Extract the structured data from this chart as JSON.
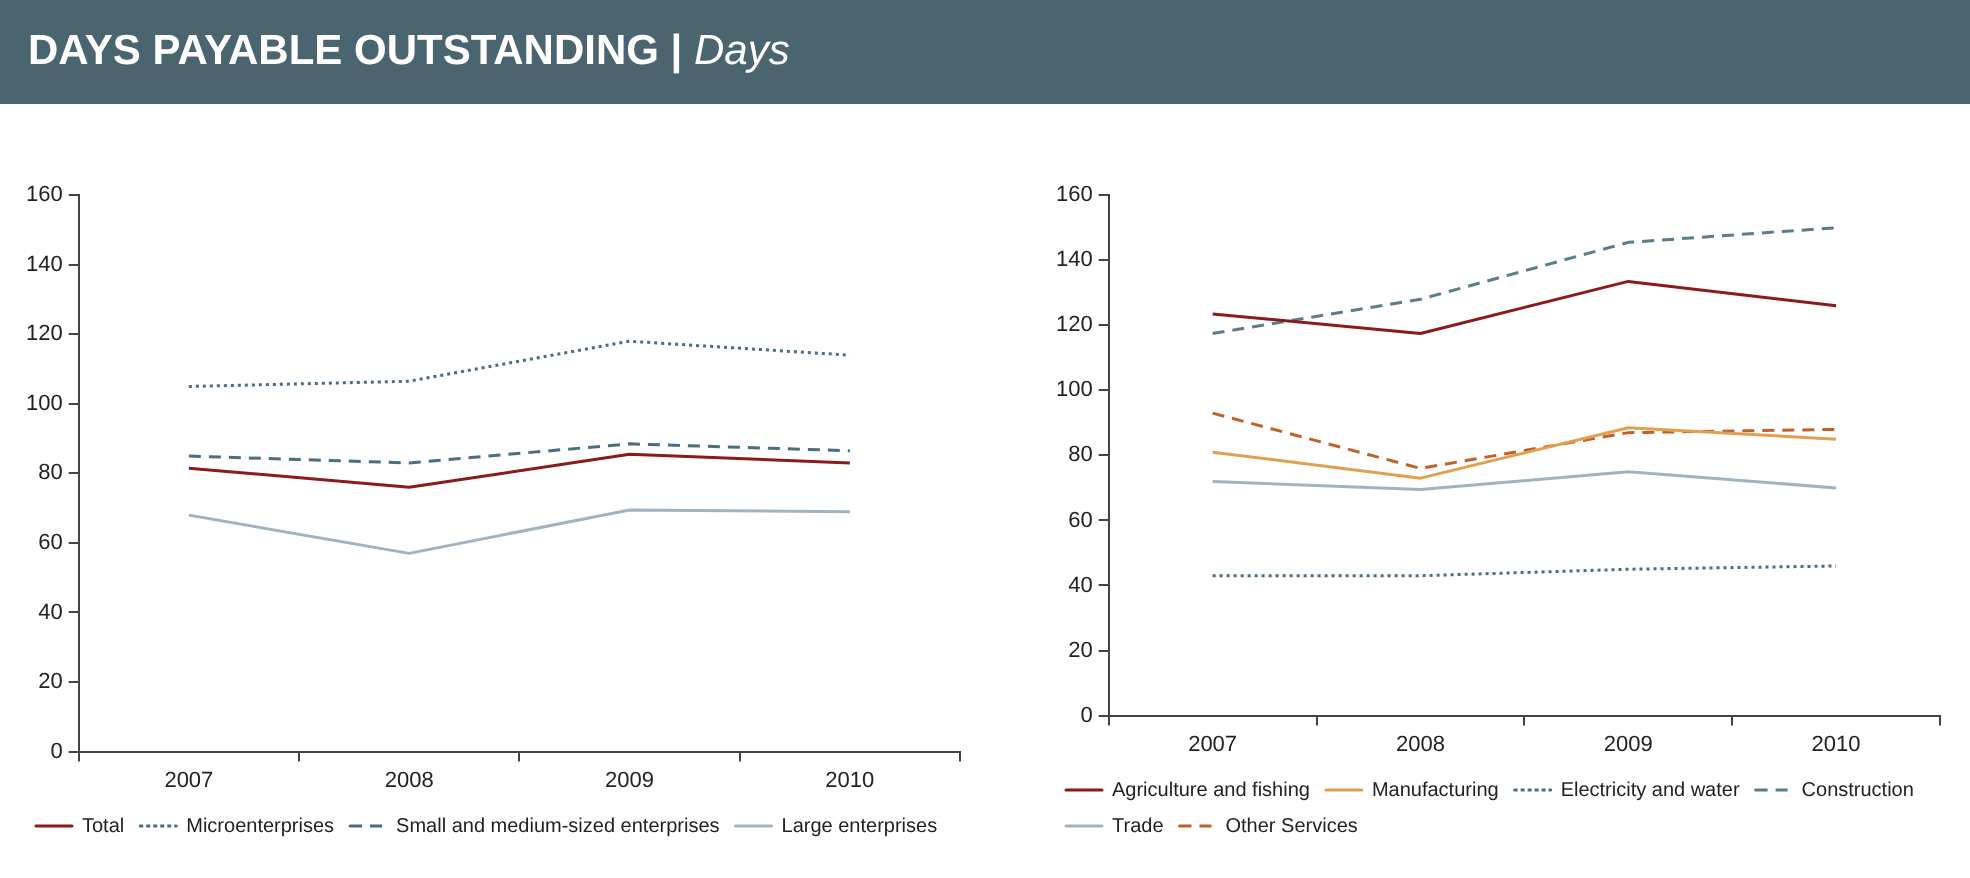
{
  "chart_data": [
    {
      "type": "line",
      "title": "DAYS PAYABLE OUTSTANDING |",
      "subtitle": "Days",
      "categories": [
        "2007",
        "2008",
        "2009",
        "2010"
      ],
      "ylim": [
        0,
        160
      ],
      "yticks": [
        0,
        20,
        40,
        60,
        80,
        100,
        120,
        140,
        160
      ],
      "grid": false,
      "legend": "bottom",
      "marker": "none",
      "series": [
        {
          "name": "Total",
          "color": "#8b1a1a",
          "line_style": "solid",
          "values": [
            81.5,
            76,
            85.5,
            83
          ]
        },
        {
          "name": "Microenterprises",
          "color": "#4a6d80",
          "line_style": "dotted",
          "values": [
            105,
            106.5,
            118,
            114
          ]
        },
        {
          "name": "Small and medium-sized enterprises",
          "color": "#4a6d80",
          "line_style": "dashed",
          "values": [
            85,
            83,
            88.5,
            86.5
          ]
        },
        {
          "name": "Large enterprises",
          "color": "#a0b4c0",
          "line_style": "solid",
          "values": [
            68,
            57,
            69.5,
            69
          ]
        }
      ]
    },
    {
      "type": "line",
      "categories": [
        "2007",
        "2008",
        "2009",
        "2010"
      ],
      "ylim": [
        0,
        160
      ],
      "yticks": [
        0,
        20,
        40,
        60,
        80,
        100,
        120,
        140,
        160
      ],
      "grid": false,
      "legend": "bottom",
      "marker": "none",
      "series": [
        {
          "name": "Agriculture and fishing",
          "color": "#8b1a1a",
          "line_style": "solid",
          "values": [
            123.5,
            117.5,
            133.5,
            126
          ]
        },
        {
          "name": "Manufacturing",
          "color": "#e0a050",
          "line_style": "solid",
          "values": [
            81,
            73,
            88.5,
            85
          ]
        },
        {
          "name": "Electricity and water",
          "color": "#4a6d80",
          "line_style": "dotted",
          "values": [
            43,
            43,
            45,
            46
          ]
        },
        {
          "name": "Construction",
          "color": "#5a7d8a",
          "line_style": "dashed",
          "values": [
            117.5,
            128,
            145.5,
            150
          ]
        },
        {
          "name": "Trade",
          "color": "#a0b4c0",
          "line_style": "solid",
          "values": [
            72,
            69.5,
            75,
            70
          ]
        },
        {
          "name": "Other Services",
          "color": "#c0602a",
          "line_style": "dashed",
          "values": [
            93,
            76,
            87,
            88
          ]
        }
      ]
    }
  ]
}
